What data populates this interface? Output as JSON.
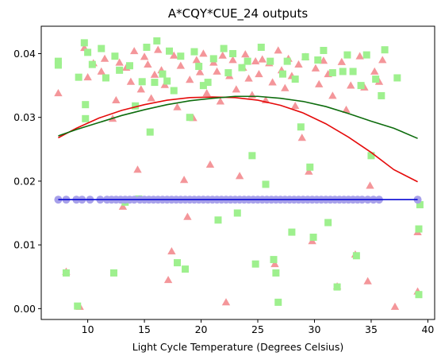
{
  "chart_data": {
    "type": "scatter",
    "title": "A*CQY*CUE_24 outputs",
    "xlabel": "Light Cycle Temperature (Degrees Celsius)",
    "ylabel": "",
    "xlim": [
      5.9,
      40.6
    ],
    "ylim": [
      -0.0017,
      0.0443
    ],
    "x_ticks": [
      10,
      15,
      20,
      25,
      30,
      35,
      40
    ],
    "x_tick_labels": [
      "10",
      "15",
      "20",
      "25",
      "30",
      "35",
      "40"
    ],
    "y_ticks": [
      0.0,
      0.01,
      0.02,
      0.03,
      0.04
    ],
    "y_tick_labels": [
      "0.00",
      "0.01",
      "0.02",
      "0.03",
      "0.04"
    ],
    "grid": false,
    "legend": "none",
    "series": [
      {
        "marker": "triangle",
        "color": "#f4969a",
        "points": [
          [
            7.4,
            0.0338
          ],
          [
            8.1,
            0.0058
          ],
          [
            9.3,
            0.0003
          ],
          [
            9.7,
            0.0409
          ],
          [
            10.0,
            0.0363
          ],
          [
            10.5,
            0.0385
          ],
          [
            11.2,
            0.0372
          ],
          [
            11.5,
            0.0392
          ],
          [
            12.2,
            0.0298
          ],
          [
            12.5,
            0.0327
          ],
          [
            12.8,
            0.0386
          ],
          [
            13.1,
            0.016
          ],
          [
            13.4,
            0.0378
          ],
          [
            13.8,
            0.0356
          ],
          [
            14.1,
            0.0404
          ],
          [
            14.4,
            0.0218
          ],
          [
            14.7,
            0.0344
          ],
          [
            15.0,
            0.0395
          ],
          [
            15.3,
            0.0383
          ],
          [
            15.6,
            0.033
          ],
          [
            15.9,
            0.0367
          ],
          [
            16.2,
            0.0406
          ],
          [
            16.5,
            0.0374
          ],
          [
            16.8,
            0.0351
          ],
          [
            17.1,
            0.0045
          ],
          [
            17.4,
            0.009
          ],
          [
            17.6,
            0.0397
          ],
          [
            17.9,
            0.0316
          ],
          [
            18.2,
            0.0381
          ],
          [
            18.5,
            0.0202
          ],
          [
            18.8,
            0.0144
          ],
          [
            19.0,
            0.0359
          ],
          [
            19.3,
            0.0299
          ],
          [
            19.6,
            0.039
          ],
          [
            19.9,
            0.0371
          ],
          [
            20.2,
            0.04
          ],
          [
            20.5,
            0.0338
          ],
          [
            20.8,
            0.0226
          ],
          [
            21.1,
            0.0386
          ],
          [
            21.4,
            0.0372
          ],
          [
            21.7,
            0.0325
          ],
          [
            21.9,
            0.0397
          ],
          [
            22.2,
            0.001
          ],
          [
            22.5,
            0.0365
          ],
          [
            22.8,
            0.039
          ],
          [
            23.1,
            0.0344
          ],
          [
            23.4,
            0.0208
          ],
          [
            23.7,
            0.0378
          ],
          [
            23.9,
            0.0399
          ],
          [
            24.2,
            0.0361
          ],
          [
            24.5,
            0.0335
          ],
          [
            24.8,
            0.0388
          ],
          [
            25.1,
            0.0368
          ],
          [
            25.4,
            0.0391
          ],
          [
            25.7,
            0.0327
          ],
          [
            26.0,
            0.0385
          ],
          [
            26.3,
            0.0355
          ],
          [
            26.5,
            0.007
          ],
          [
            26.8,
            0.0405
          ],
          [
            27.1,
            0.0374
          ],
          [
            27.4,
            0.0346
          ],
          [
            27.7,
            0.0392
          ],
          [
            28.0,
            0.0365
          ],
          [
            28.3,
            0.0318
          ],
          [
            28.6,
            0.0383
          ],
          [
            28.9,
            0.0268
          ],
          [
            29.2,
            0.0395
          ],
          [
            29.5,
            0.0215
          ],
          [
            29.8,
            0.0106
          ],
          [
            30.1,
            0.0377
          ],
          [
            30.4,
            0.0352
          ],
          [
            30.8,
            0.0389
          ],
          [
            31.2,
            0.0368
          ],
          [
            31.6,
            0.0334
          ],
          [
            32.0,
            0.0035
          ],
          [
            32.4,
            0.0387
          ],
          [
            32.8,
            0.0312
          ],
          [
            33.2,
            0.035
          ],
          [
            33.6,
            0.0085
          ],
          [
            34.0,
            0.0396
          ],
          [
            34.4,
            0.0347
          ],
          [
            34.7,
            0.0043
          ],
          [
            34.9,
            0.0193
          ],
          [
            35.3,
            0.0372
          ],
          [
            35.7,
            0.0356
          ],
          [
            36.0,
            0.039
          ],
          [
            37.1,
            0.0003
          ],
          [
            39.1,
            0.0027
          ],
          [
            39.1,
            0.012
          ]
        ]
      },
      {
        "marker": "square",
        "color": "#9ef08e",
        "points": [
          [
            7.4,
            0.0388
          ],
          [
            7.4,
            0.0382
          ],
          [
            8.1,
            0.0056
          ],
          [
            9.1,
            0.0004
          ],
          [
            9.2,
            0.0363
          ],
          [
            9.7,
            0.0417
          ],
          [
            9.8,
            0.0298
          ],
          [
            9.8,
            0.032
          ],
          [
            10.0,
            0.0402
          ],
          [
            10.4,
            0.0383
          ],
          [
            11.2,
            0.0408
          ],
          [
            11.6,
            0.0362
          ],
          [
            12.3,
            0.0056
          ],
          [
            12.4,
            0.0396
          ],
          [
            12.8,
            0.0374
          ],
          [
            13.3,
            0.0167
          ],
          [
            13.7,
            0.0381
          ],
          [
            14.2,
            0.0318
          ],
          [
            14.5,
            0.0172
          ],
          [
            14.8,
            0.0356
          ],
          [
            15.2,
            0.041
          ],
          [
            15.5,
            0.0277
          ],
          [
            15.9,
            0.0355
          ],
          [
            16.1,
            0.042
          ],
          [
            16.6,
            0.0368
          ],
          [
            17.0,
            0.0357
          ],
          [
            17.2,
            0.0404
          ],
          [
            17.6,
            0.0342
          ],
          [
            17.9,
            0.0072
          ],
          [
            18.2,
            0.0396
          ],
          [
            18.6,
            0.0062
          ],
          [
            19.0,
            0.03
          ],
          [
            19.4,
            0.0403
          ],
          [
            19.8,
            0.038
          ],
          [
            20.2,
            0.035
          ],
          [
            20.6,
            0.0355
          ],
          [
            21.1,
            0.0392
          ],
          [
            21.5,
            0.0139
          ],
          [
            22.0,
            0.0408
          ],
          [
            22.4,
            0.037
          ],
          [
            22.8,
            0.04
          ],
          [
            23.2,
            0.015
          ],
          [
            23.6,
            0.0378
          ],
          [
            24.1,
            0.0388
          ],
          [
            24.5,
            0.024
          ],
          [
            24.8,
            0.007
          ],
          [
            25.3,
            0.041
          ],
          [
            25.7,
            0.0195
          ],
          [
            26.1,
            0.0388
          ],
          [
            26.4,
            0.0077
          ],
          [
            26.6,
            0.0056
          ],
          [
            26.8,
            0.001
          ],
          [
            27.2,
            0.0368
          ],
          [
            27.6,
            0.0388
          ],
          [
            28.0,
            0.012
          ],
          [
            28.3,
            0.036
          ],
          [
            28.8,
            0.0285
          ],
          [
            29.2,
            0.0395
          ],
          [
            29.6,
            0.0222
          ],
          [
            29.9,
            0.0112
          ],
          [
            30.3,
            0.039
          ],
          [
            30.8,
            0.0405
          ],
          [
            31.2,
            0.0135
          ],
          [
            31.6,
            0.037
          ],
          [
            32.0,
            0.0034
          ],
          [
            32.5,
            0.0372
          ],
          [
            32.9,
            0.0398
          ],
          [
            33.4,
            0.0372
          ],
          [
            33.7,
            0.0083
          ],
          [
            34.1,
            0.035
          ],
          [
            34.6,
            0.0398
          ],
          [
            35.0,
            0.024
          ],
          [
            35.4,
            0.036
          ],
          [
            35.9,
            0.0334
          ],
          [
            36.2,
            0.0406
          ],
          [
            37.3,
            0.0362
          ],
          [
            39.2,
            0.0022
          ],
          [
            39.2,
            0.0125
          ],
          [
            39.3,
            0.0163
          ]
        ]
      },
      {
        "marker": "circle",
        "color": "#a7a0ea",
        "points": [
          [
            7.4,
            0.0171
          ],
          [
            8.1,
            0.0171
          ],
          [
            9.0,
            0.0171
          ],
          [
            9.5,
            0.0171
          ],
          [
            10.2,
            0.0171
          ],
          [
            11.1,
            0.0171
          ],
          [
            11.7,
            0.0171
          ],
          [
            12.1,
            0.0171
          ],
          [
            12.5,
            0.0171
          ],
          [
            12.9,
            0.0171
          ],
          [
            13.3,
            0.0171
          ],
          [
            13.7,
            0.0171
          ],
          [
            14.1,
            0.0171
          ],
          [
            14.6,
            0.0171
          ],
          [
            15.0,
            0.0171
          ],
          [
            15.4,
            0.0171
          ],
          [
            15.8,
            0.0171
          ],
          [
            16.2,
            0.0171
          ],
          [
            16.6,
            0.0171
          ],
          [
            17.0,
            0.0171
          ],
          [
            17.4,
            0.0171
          ],
          [
            17.8,
            0.0171
          ],
          [
            18.2,
            0.0171
          ],
          [
            18.6,
            0.0171
          ],
          [
            19.0,
            0.0171
          ],
          [
            19.4,
            0.0171
          ],
          [
            19.8,
            0.0171
          ],
          [
            20.2,
            0.0171
          ],
          [
            20.6,
            0.0171
          ],
          [
            21.0,
            0.0171
          ],
          [
            21.4,
            0.0171
          ],
          [
            21.8,
            0.0171
          ],
          [
            22.2,
            0.0171
          ],
          [
            22.6,
            0.0171
          ],
          [
            23.0,
            0.0171
          ],
          [
            23.4,
            0.0171
          ],
          [
            23.8,
            0.0171
          ],
          [
            24.2,
            0.0171
          ],
          [
            24.6,
            0.0171
          ],
          [
            25.0,
            0.0171
          ],
          [
            25.4,
            0.0171
          ],
          [
            25.8,
            0.0171
          ],
          [
            26.2,
            0.0171
          ],
          [
            26.6,
            0.0171
          ],
          [
            27.0,
            0.0171
          ],
          [
            27.4,
            0.0171
          ],
          [
            27.8,
            0.0171
          ],
          [
            28.2,
            0.0171
          ],
          [
            28.6,
            0.0171
          ],
          [
            29.0,
            0.0171
          ],
          [
            29.4,
            0.0171
          ],
          [
            29.8,
            0.0171
          ],
          [
            30.2,
            0.0171
          ],
          [
            30.6,
            0.0171
          ],
          [
            31.0,
            0.0171
          ],
          [
            31.4,
            0.0171
          ],
          [
            31.8,
            0.0171
          ],
          [
            32.2,
            0.0171
          ],
          [
            32.6,
            0.0171
          ],
          [
            33.0,
            0.0171
          ],
          [
            33.4,
            0.0171
          ],
          [
            33.8,
            0.0171
          ],
          [
            34.2,
            0.0171
          ],
          [
            34.7,
            0.0171
          ],
          [
            35.2,
            0.0171
          ],
          [
            35.7,
            0.0171
          ],
          [
            39.1,
            0.0171
          ]
        ]
      }
    ],
    "fit_lines": [
      {
        "color": "#e50b0b",
        "x": [
          7.4,
          9,
          11,
          13,
          15,
          17,
          19,
          21,
          23,
          25,
          27,
          29,
          31,
          33,
          35,
          37,
          39.1
        ],
        "y": [
          0.0268,
          0.0283,
          0.0299,
          0.0311,
          0.032,
          0.0327,
          0.0331,
          0.0332,
          0.0331,
          0.0327,
          0.0319,
          0.0307,
          0.029,
          0.0269,
          0.0245,
          0.0218,
          0.0199
        ]
      },
      {
        "color": "#0d6c0d",
        "x": [
          7.4,
          9,
          11,
          13,
          15,
          17,
          19,
          21,
          23,
          25,
          27,
          29,
          31,
          33,
          35,
          37,
          39.1
        ],
        "y": [
          0.0271,
          0.0281,
          0.0292,
          0.0303,
          0.0312,
          0.032,
          0.0326,
          0.033,
          0.0333,
          0.0333,
          0.033,
          0.0325,
          0.0317,
          0.0306,
          0.0294,
          0.0283,
          0.0267
        ]
      },
      {
        "color": "#0a0ad4",
        "x": [
          7.4,
          39.1
        ],
        "y": [
          0.0171,
          0.0171
        ]
      }
    ]
  }
}
